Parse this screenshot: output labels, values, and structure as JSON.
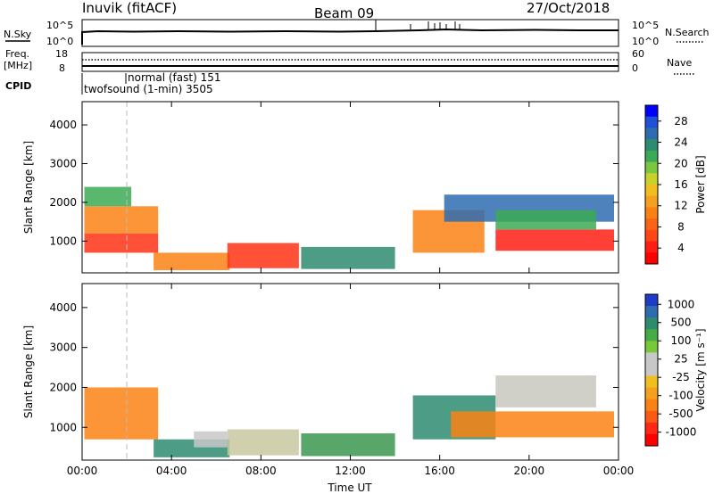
{
  "header": {
    "site": "Inuvik (fitACF)",
    "beam": "Beam 09",
    "date": "27/Oct/2018"
  },
  "labels": {
    "nsky": "N.Sky",
    "nsearch": "N.Search",
    "freq_top": "Freq.",
    "freq_unit": "[MHz]",
    "nave": "Nave",
    "cpid": "CPID",
    "noise_left_ticks": [
      "10^5",
      "10^0"
    ],
    "noise_right_ticks": [
      "10^5",
      "10^0"
    ],
    "freq_left_ticks": [
      "18",
      "8"
    ],
    "freq_right_ticks": [
      "60",
      "0"
    ],
    "cpid_modes": [
      "normal (fast) 151",
      "twofsound (1-min) 3505"
    ]
  },
  "chart_data": [
    {
      "type": "heatmap",
      "panel": "power",
      "ylabel": "Slant Range [km]",
      "yticks": [
        "1000",
        "2000",
        "3000",
        "4000"
      ],
      "ylim": [
        180,
        4600
      ],
      "xlim": [
        0,
        24
      ],
      "xticks": [
        "00:00",
        "04:00",
        "08:00",
        "12:00",
        "16:00",
        "20:00",
        "00:00"
      ],
      "colorbar": {
        "label": "Power [dB]",
        "ticks": [
          "4",
          "8",
          "12",
          "16",
          "20",
          "24",
          "28"
        ],
        "colors": [
          "#0000ff",
          "#1e50d8",
          "#2e6cb0",
          "#2e8b70",
          "#3caa55",
          "#7ac840",
          "#c8d22a",
          "#f0be1e",
          "#f5a01e",
          "#fa8214",
          "#fa6414",
          "#ff4614",
          "#ff1e14",
          "#ff0000"
        ]
      },
      "echoes": [
        {
          "t0": 0.1,
          "t1": 3.4,
          "r0": 700,
          "r1": 1200,
          "color": "#ff3214"
        },
        {
          "t0": 0.1,
          "t1": 3.4,
          "r0": 1200,
          "r1": 1900,
          "color": "#fa8214"
        },
        {
          "t0": 0.1,
          "t1": 2.2,
          "r0": 1900,
          "r1": 2400,
          "color": "#3caa55"
        },
        {
          "t0": 3.2,
          "t1": 6.6,
          "r0": 250,
          "r1": 700,
          "color": "#fa8214"
        },
        {
          "t0": 6.5,
          "t1": 9.7,
          "r0": 300,
          "r1": 950,
          "color": "#ff3214"
        },
        {
          "t0": 9.8,
          "t1": 14.0,
          "r0": 280,
          "r1": 850,
          "color": "#2e8b70"
        },
        {
          "t0": 14.8,
          "t1": 18.0,
          "r0": 700,
          "r1": 1800,
          "color": "#fa8214"
        },
        {
          "t0": 16.2,
          "t1": 23.8,
          "r0": 1500,
          "r1": 2200,
          "color": "#2e6cb0"
        },
        {
          "t0": 18.5,
          "t1": 23.8,
          "r0": 750,
          "r1": 1300,
          "color": "#ff1e14"
        },
        {
          "t0": 18.5,
          "t1": 23.0,
          "r0": 1300,
          "r1": 1800,
          "color": "#3caa55"
        }
      ]
    },
    {
      "type": "heatmap",
      "panel": "velocity",
      "ylabel": "Slant Range [km]",
      "yticks": [
        "1000",
        "2000",
        "3000",
        "4000"
      ],
      "ylim": [
        180,
        4600
      ],
      "xlim": [
        0,
        24
      ],
      "xticks": [
        "00:00",
        "04:00",
        "08:00",
        "12:00",
        "16:00",
        "20:00",
        "00:00"
      ],
      "xlabel": "Time UT",
      "colorbar": {
        "label": "Velocity [m s⁻¹]",
        "ticks": [
          "1000",
          "500",
          "100",
          "25",
          "-25",
          "-100",
          "-500",
          "-1000"
        ],
        "colors": [
          "#1e3cc8",
          "#2e6cb0",
          "#2e8b70",
          "#46aa46",
          "#78c83c",
          "#c8c8c8",
          "#c8c8c8",
          "#f0be1e",
          "#f5a01e",
          "#fa8214",
          "#fa5a14",
          "#ff2814",
          "#ff0000"
        ]
      },
      "echoes": [
        {
          "t0": 0.1,
          "t1": 3.4,
          "r0": 700,
          "r1": 2000,
          "color": "#fa8214"
        },
        {
          "t0": 3.2,
          "t1": 6.6,
          "r0": 250,
          "r1": 700,
          "color": "#2e8b70"
        },
        {
          "t0": 5.0,
          "t1": 6.5,
          "r0": 500,
          "r1": 900,
          "color": "#c8c8c8"
        },
        {
          "t0": 6.5,
          "t1": 9.7,
          "r0": 300,
          "r1": 950,
          "color": "#c8c8a0"
        },
        {
          "t0": 9.8,
          "t1": 14.0,
          "r0": 280,
          "r1": 850,
          "color": "#3c9650"
        },
        {
          "t0": 14.8,
          "t1": 18.5,
          "r0": 700,
          "r1": 1800,
          "color": "#2e8b70"
        },
        {
          "t0": 16.5,
          "t1": 23.8,
          "r0": 750,
          "r1": 1400,
          "color": "#fa8214"
        },
        {
          "t0": 18.5,
          "t1": 23.0,
          "r0": 1500,
          "r1": 2300,
          "color": "#c8c8c0"
        }
      ]
    }
  ]
}
